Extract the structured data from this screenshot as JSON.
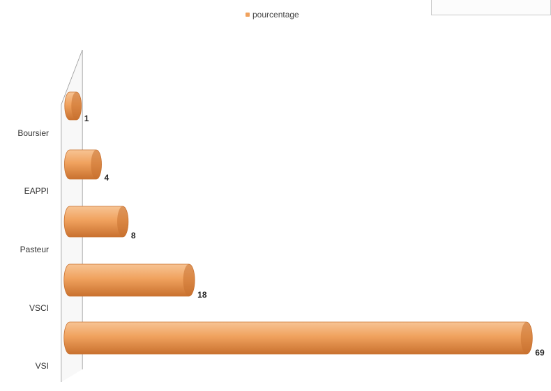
{
  "legend": {
    "label": "pourcentage"
  },
  "colors": {
    "bar": "#f0a25e",
    "bar_light": "#f7c494",
    "bar_dark": "#c9712f",
    "wall": "#888888"
  },
  "chart_data": {
    "type": "bar",
    "orientation": "horizontal",
    "style": "3d-cylinder",
    "categories": [
      "Boursier",
      "EAPPI",
      "Pasteur",
      "VSCI",
      "VSI"
    ],
    "series": [
      {
        "name": "pourcentage",
        "values": [
          1,
          4,
          8,
          18,
          69
        ]
      }
    ],
    "title": "",
    "xlabel": "",
    "ylabel": "",
    "xlim": [
      0,
      69
    ],
    "data_labels": true,
    "grid": false,
    "legend_position": "top"
  }
}
